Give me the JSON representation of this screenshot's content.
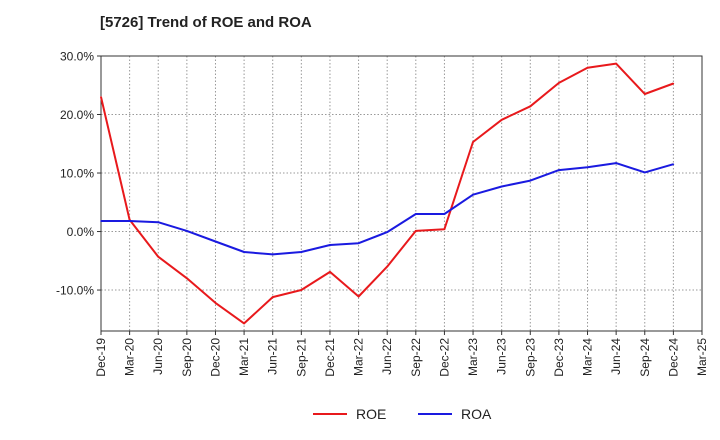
{
  "chart_data": {
    "type": "line",
    "title": "[5726]  Trend of ROE and ROA",
    "xlabel": "",
    "ylabel": "",
    "categories": [
      "Dec-19",
      "Mar-20",
      "Jun-20",
      "Sep-20",
      "Dec-20",
      "Mar-21",
      "Jun-21",
      "Sep-21",
      "Dec-21",
      "Mar-22",
      "Jun-22",
      "Sep-22",
      "Dec-22",
      "Mar-23",
      "Jun-23",
      "Sep-23",
      "Dec-23",
      "Mar-24",
      "Jun-24",
      "Sep-24",
      "Dec-24",
      "Mar-25"
    ],
    "tick_labels": [
      "Dec-19",
      "Mar-20",
      "Jun-20",
      "Sep-20",
      "Dec-20",
      "Mar-21",
      "Jun-21",
      "Sep-21",
      "Dec-21",
      "Mar-22",
      "Jun-22",
      "Sep-22",
      "Dec-22",
      "Mar-23",
      "Jun-23",
      "Sep-23",
      "Dec-23",
      "Mar-24",
      "Jun-24",
      "Sep-24",
      "Dec-24",
      "Mar-25"
    ],
    "ylim": [
      -17,
      30
    ],
    "yticks": [
      30,
      20,
      10,
      0,
      -10
    ],
    "ytick_labels": [
      "30.0%",
      "20.0%",
      "10.0%",
      "0.0%",
      "-10.0%"
    ],
    "grid": true,
    "legend_position": "bottom",
    "series": [
      {
        "name": "ROE",
        "color": "#e8191c",
        "values": [
          23.0,
          2.0,
          -4.3,
          -8.0,
          -12.2,
          -15.7,
          -11.2,
          -10.0,
          -6.9,
          -11.1,
          -6.0,
          0.1,
          0.4,
          15.3,
          19.1,
          21.4,
          25.4,
          28.0,
          28.7,
          23.5,
          25.3,
          null
        ]
      },
      {
        "name": "ROA",
        "color": "#1a1ae0",
        "values": [
          1.8,
          1.8,
          1.6,
          0.1,
          -1.7,
          -3.5,
          -3.9,
          -3.5,
          -2.3,
          -2.0,
          -0.1,
          3.0,
          3.0,
          6.3,
          7.7,
          8.7,
          10.5,
          11.0,
          11.7,
          10.1,
          11.5,
          null
        ]
      }
    ]
  }
}
